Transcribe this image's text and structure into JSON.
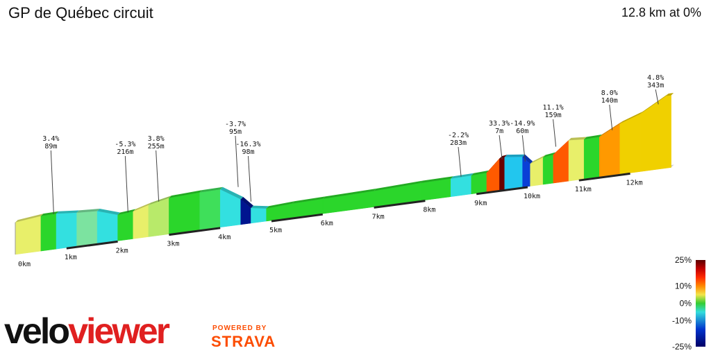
{
  "header": {
    "title": "GP de Québec circuit",
    "summary": "12.8 km at 0%"
  },
  "branding": {
    "logo_part1": "velo",
    "logo_part2": "viewer",
    "powered_by": "POWERED BY",
    "strava": "STRAVA"
  },
  "colors": {
    "logo_dark": "#111111",
    "logo_red": "#e02020",
    "strava_orange": "#fc4c02"
  },
  "chart_data": {
    "type": "area",
    "title": "GP de Québec circuit",
    "x_unit": "km",
    "xlim": [
      0,
      12.8
    ],
    "x_ticks": [
      "0km",
      "1km",
      "2km",
      "3km",
      "4km",
      "5km",
      "6km",
      "7km",
      "8km",
      "9km",
      "10km",
      "11km",
      "12km"
    ],
    "profile": [
      {
        "x": 0.0,
        "elev": 89,
        "grade": 3.4
      },
      {
        "x": 0.5,
        "elev": 97,
        "grade": 1.5
      },
      {
        "x": 0.8,
        "elev": 98,
        "grade": -2.0
      },
      {
        "x": 1.2,
        "elev": 93,
        "grade": -1.0
      },
      {
        "x": 1.6,
        "elev": 90,
        "grade": -4.0
      },
      {
        "x": 2.0,
        "elev": 72,
        "grade": 1.0
      },
      {
        "x": 2.3,
        "elev": 76,
        "grade": 3.8
      },
      {
        "x": 2.6,
        "elev": 88,
        "grade": 2.0
      },
      {
        "x": 3.0,
        "elev": 100,
        "grade": 0.5
      },
      {
        "x": 3.6,
        "elev": 104,
        "grade": 0.0
      },
      {
        "x": 4.0,
        "elev": 105,
        "grade": -3.7
      },
      {
        "x": 4.4,
        "elev": 70,
        "grade": -16.3
      },
      {
        "x": 4.6,
        "elev": 42,
        "grade": -2.0
      },
      {
        "x": 4.9,
        "elev": 35,
        "grade": 1.0
      },
      {
        "x": 5.4,
        "elev": 39,
        "grade": 0.5
      },
      {
        "x": 6.0,
        "elev": 41,
        "grade": 0.5
      },
      {
        "x": 7.0,
        "elev": 44,
        "grade": 0.5
      },
      {
        "x": 7.9,
        "elev": 49,
        "grade": 0.8
      },
      {
        "x": 8.5,
        "elev": 50,
        "grade": -2.2
      },
      {
        "x": 8.9,
        "elev": 51,
        "grade": 0.5
      },
      {
        "x": 9.2,
        "elev": 53,
        "grade": 12.0
      },
      {
        "x": 9.45,
        "elev": 88,
        "grade": 33.3
      },
      {
        "x": 9.55,
        "elev": 90,
        "grade": -6.0
      },
      {
        "x": 9.9,
        "elev": 84,
        "grade": -14.9
      },
      {
        "x": 10.05,
        "elev": 62,
        "grade": 4.0
      },
      {
        "x": 10.3,
        "elev": 75,
        "grade": 1.5
      },
      {
        "x": 10.5,
        "elev": 79,
        "grade": 11.1
      },
      {
        "x": 10.8,
        "elev": 113,
        "grade": 3.0
      },
      {
        "x": 11.1,
        "elev": 110,
        "grade": 0.5
      },
      {
        "x": 11.4,
        "elev": 111,
        "grade": 8.0
      },
      {
        "x": 11.8,
        "elev": 140,
        "grade": 4.8
      },
      {
        "x": 12.2,
        "elev": 160,
        "grade": 4.8
      },
      {
        "x": 12.7,
        "elev": 200,
        "grade": 4.8
      },
      {
        "x": 12.8,
        "elev": 200,
        "grade": 4.8
      }
    ],
    "annotations": [
      {
        "x": 0.75,
        "elev": 98,
        "grade": "3.4%",
        "length": "89m"
      },
      {
        "x": 2.2,
        "elev": 75,
        "grade": "-5.3%",
        "length": "216m"
      },
      {
        "x": 2.8,
        "elev": 94,
        "grade": "3.8%",
        "length": "255m"
      },
      {
        "x": 4.35,
        "elev": 105,
        "grade": "-3.7%",
        "length": "95m"
      },
      {
        "x": 4.6,
        "elev": 60,
        "grade": "-16.3%",
        "length": "98m"
      },
      {
        "x": 8.7,
        "elev": 52,
        "grade": "-2.2%",
        "length": "283m"
      },
      {
        "x": 9.5,
        "elev": 85,
        "grade": "33.3%",
        "length": "7m"
      },
      {
        "x": 9.95,
        "elev": 70,
        "grade": "-14.9%",
        "length": "60m"
      },
      {
        "x": 10.55,
        "elev": 100,
        "grade": "11.1%",
        "length": "159m"
      },
      {
        "x": 11.65,
        "elev": 125,
        "grade": "8.0%",
        "length": "140m"
      },
      {
        "x": 12.55,
        "elev": 180,
        "grade": "4.8%",
        "length": "343m"
      }
    ],
    "legend": {
      "labels": [
        "25%",
        "10%",
        "0%",
        "-10%",
        "-25%"
      ],
      "values": [
        25,
        10,
        0,
        -10,
        -25
      ]
    }
  }
}
